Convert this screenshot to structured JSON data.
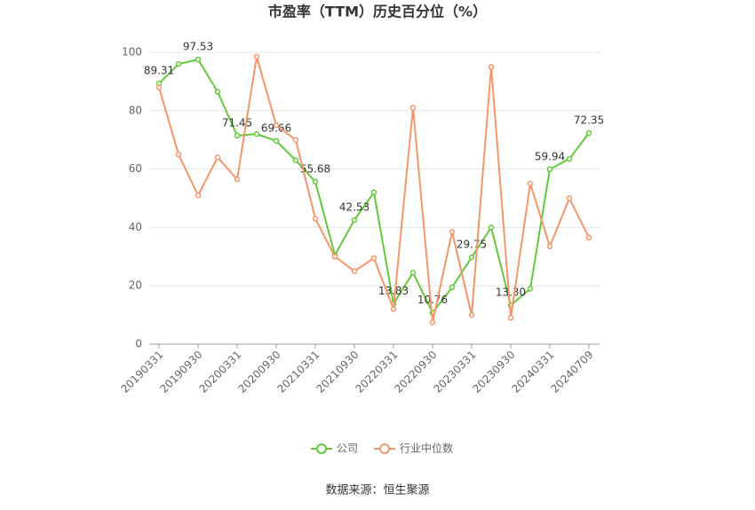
{
  "chart_data": {
    "type": "line",
    "title": "市盈率（TTM）历史百分位（%）",
    "categories": [
      "20190331",
      null,
      "20190930",
      null,
      "20200331",
      null,
      "20200930",
      null,
      "20210331",
      null,
      "20210930",
      null,
      "20220331",
      null,
      "20220930",
      null,
      "20230331",
      null,
      "20230930",
      null,
      "20240331",
      null,
      "20240709"
    ],
    "series": [
      {
        "name": "公司",
        "color": "#63c93a",
        "values": [
          89.31,
          96,
          97.53,
          86.5,
          71.45,
          72,
          69.66,
          63,
          55.68,
          30.5,
          42.53,
          52,
          13.83,
          24.5,
          10.76,
          19.5,
          29.75,
          40,
          13.3,
          19,
          59.94,
          63.5,
          72.35
        ],
        "value_labels": [
          "89.31",
          null,
          "97.53",
          null,
          "71.45",
          null,
          "69.66",
          null,
          "55.68",
          null,
          "42.53",
          null,
          "13.83",
          null,
          "10.76",
          null,
          "29.75",
          null,
          "13.30",
          null,
          "59.94",
          null,
          "72.35"
        ]
      },
      {
        "name": "行业中位数",
        "color": "#f4956b",
        "values": [
          88,
          65,
          51,
          64,
          56.5,
          98.5,
          75,
          70,
          43,
          30,
          25,
          29.5,
          12,
          81,
          7.5,
          38.5,
          10,
          95,
          9,
          55,
          33.5,
          50,
          36.5
        ]
      }
    ],
    "ylim": [
      0,
      100
    ],
    "yticks": [
      0,
      20,
      40,
      60,
      80,
      100
    ],
    "grid": true,
    "source": "数据来源：恒生聚源"
  }
}
